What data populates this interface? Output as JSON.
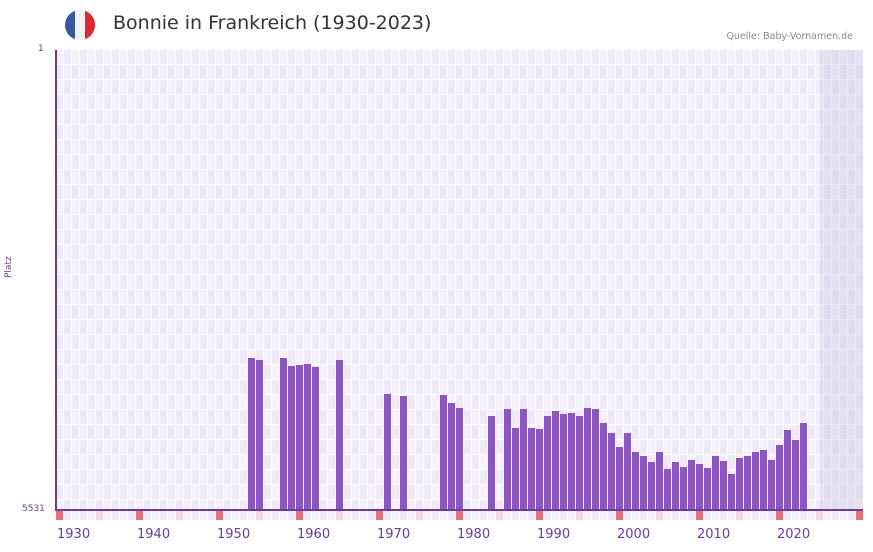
{
  "header": {
    "title": "Bonnie in Frankreich (1930-2023)",
    "source": "Quelle: Baby-Vornamen.de",
    "flag_colors": [
      "#3557a8",
      "#f2f2f2",
      "#e5232f"
    ]
  },
  "axes": {
    "y_title": "Platz",
    "y_top_label": "1",
    "y_bottom_label": "5531",
    "x_ticks": [
      "1930",
      "1940",
      "1950",
      "1960",
      "1970",
      "1980",
      "1990",
      "2000",
      "2010",
      "2020"
    ]
  },
  "colors": {
    "bar": "#8b55c8",
    "axis": "#6b3aa0",
    "grid_a": "#eeeaf8",
    "grid_b": "#f4f1fb",
    "marker_strong": "#e57373",
    "marker_light": "#f6d7df"
  },
  "chart_data": {
    "type": "bar",
    "title": "Bonnie in Frankreich (1930-2023)",
    "xlabel": "",
    "ylabel": "Platz",
    "ylim": [
      5531,
      1
    ],
    "y_inverted": true,
    "x_range": [
      1929,
      2029
    ],
    "grid": true,
    "x": [
      1952,
      1953,
      1956,
      1957,
      1958,
      1959,
      1960,
      1963,
      1969,
      1971,
      1976,
      1977,
      1978,
      1982,
      1984,
      1985,
      1986,
      1987,
      1988,
      1989,
      1990,
      1991,
      1992,
      1993,
      1994,
      1995,
      1996,
      1997,
      1998,
      1999,
      2000,
      2001,
      2002,
      2003,
      2004,
      2005,
      2006,
      2007,
      2008,
      2009,
      2010,
      2011,
      2012,
      2013,
      2014,
      2015,
      2016,
      2017,
      2018,
      2019,
      2020,
      2021
    ],
    "values": [
      3700,
      3730,
      3700,
      3800,
      3790,
      3770,
      3810,
      3730,
      4140,
      4160,
      4150,
      4250,
      4310,
      4400,
      4320,
      4550,
      4320,
      4550,
      4560,
      4400,
      4340,
      4380,
      4360,
      4400,
      4310,
      4320,
      4490,
      4600,
      4770,
      4610,
      4830,
      4880,
      4950,
      4830,
      5040,
      4950,
      5010,
      4930,
      4980,
      5020,
      4880,
      4940,
      5100,
      4910,
      4880,
      4830,
      4810,
      4930,
      4750,
      4570,
      4690,
      4480
    ]
  }
}
